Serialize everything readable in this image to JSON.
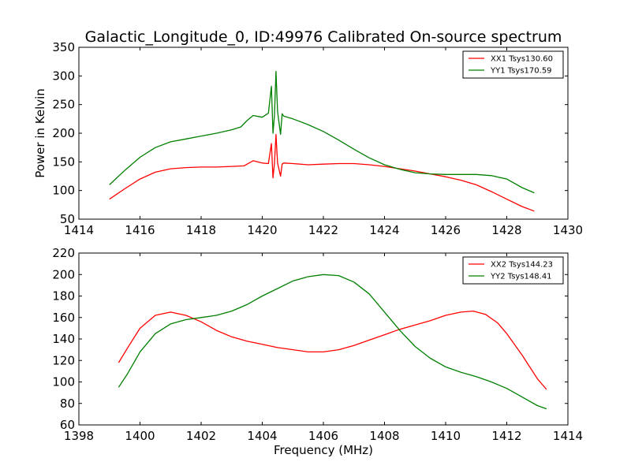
{
  "chart_data": [
    {
      "type": "line",
      "title": "Galactic_Longitude_0, ID:49976 Calibrated On-source spectrum",
      "xlabel": "",
      "ylabel": "Power in Kelvin",
      "xlim": [
        1414,
        1430
      ],
      "ylim": [
        50,
        350
      ],
      "xticks": [
        1414,
        1416,
        1418,
        1420,
        1422,
        1424,
        1426,
        1428,
        1430
      ],
      "yticks": [
        50,
        100,
        150,
        200,
        250,
        300,
        350
      ],
      "grid": false,
      "legend_position": "top-right",
      "series": [
        {
          "name": "XX1 Tsys130.60",
          "color": "#ff0000",
          "x": [
            1415.0,
            1415.5,
            1416.0,
            1416.5,
            1417.0,
            1417.5,
            1418.0,
            1418.5,
            1419.0,
            1419.4,
            1419.7,
            1420.0,
            1420.2,
            1420.3,
            1420.35,
            1420.4,
            1420.45,
            1420.5,
            1420.6,
            1420.65,
            1420.7,
            1421.0,
            1421.5,
            1422.0,
            1422.5,
            1423.0,
            1423.5,
            1424.0,
            1424.5,
            1425.0,
            1425.5,
            1426.0,
            1426.5,
            1427.0,
            1427.5,
            1428.0,
            1428.5,
            1428.9
          ],
          "values": [
            85,
            103,
            120,
            132,
            138,
            140,
            141,
            141,
            142,
            143,
            152,
            148,
            147,
            182,
            122,
            148,
            198,
            148,
            125,
            146,
            148,
            147,
            145,
            146,
            147,
            147,
            145,
            142,
            138,
            134,
            129,
            124,
            118,
            110,
            98,
            85,
            72,
            64
          ]
        },
        {
          "name": "YY1 Tsys170.59",
          "color": "#008000",
          "x": [
            1415.0,
            1415.5,
            1416.0,
            1416.5,
            1417.0,
            1417.5,
            1418.0,
            1418.5,
            1419.0,
            1419.3,
            1419.5,
            1419.7,
            1420.0,
            1420.2,
            1420.3,
            1420.35,
            1420.4,
            1420.45,
            1420.5,
            1420.6,
            1420.65,
            1420.7,
            1421.0,
            1421.5,
            1422.0,
            1422.5,
            1423.0,
            1423.5,
            1424.0,
            1424.5,
            1425.0,
            1425.5,
            1426.0,
            1426.5,
            1427.0,
            1427.5,
            1428.0,
            1428.5,
            1428.9
          ],
          "values": [
            110,
            135,
            158,
            175,
            185,
            190,
            195,
            200,
            206,
            211,
            222,
            231,
            228,
            235,
            282,
            200,
            232,
            308,
            238,
            198,
            234,
            230,
            225,
            215,
            203,
            188,
            172,
            157,
            145,
            137,
            131,
            129,
            128,
            128,
            128,
            126,
            120,
            105,
            96
          ]
        }
      ]
    },
    {
      "type": "line",
      "title": "",
      "xlabel": "Frequency (MHz)",
      "ylabel": "",
      "xlim": [
        1398,
        1414
      ],
      "ylim": [
        60,
        220
      ],
      "xticks": [
        1398,
        1400,
        1402,
        1404,
        1406,
        1408,
        1410,
        1412,
        1414
      ],
      "yticks": [
        60,
        80,
        100,
        120,
        140,
        160,
        180,
        200,
        220
      ],
      "grid": false,
      "legend_position": "top-right",
      "series": [
        {
          "name": "XX2 Tsys144.23",
          "color": "#ff0000",
          "x": [
            1399.3,
            1399.6,
            1400.0,
            1400.5,
            1401.0,
            1401.5,
            1402.0,
            1402.5,
            1403.0,
            1403.5,
            1404.0,
            1404.5,
            1405.0,
            1405.5,
            1406.0,
            1406.5,
            1407.0,
            1407.5,
            1408.0,
            1408.5,
            1409.0,
            1409.5,
            1410.0,
            1410.5,
            1410.9,
            1411.3,
            1411.7,
            1412.0,
            1412.5,
            1413.0,
            1413.3
          ],
          "values": [
            118,
            132,
            150,
            162,
            165,
            162,
            156,
            148,
            142,
            138,
            135,
            132,
            130,
            128,
            128,
            130,
            134,
            139,
            144,
            149,
            153,
            157,
            162,
            165,
            166,
            163,
            155,
            145,
            125,
            103,
            93
          ]
        },
        {
          "name": "YY2 Tsys148.41",
          "color": "#008000",
          "x": [
            1399.3,
            1399.6,
            1400.0,
            1400.5,
            1401.0,
            1401.5,
            1402.0,
            1402.5,
            1403.0,
            1403.5,
            1404.0,
            1404.5,
            1405.0,
            1405.5,
            1406.0,
            1406.5,
            1407.0,
            1407.5,
            1408.0,
            1408.5,
            1409.0,
            1409.5,
            1410.0,
            1410.5,
            1411.0,
            1411.5,
            1412.0,
            1412.5,
            1413.0,
            1413.3
          ],
          "values": [
            95,
            108,
            128,
            145,
            154,
            158,
            160,
            162,
            166,
            172,
            180,
            187,
            194,
            198,
            200,
            199,
            193,
            182,
            165,
            148,
            133,
            122,
            114,
            109,
            105,
            100,
            94,
            86,
            78,
            75
          ]
        }
      ]
    }
  ]
}
